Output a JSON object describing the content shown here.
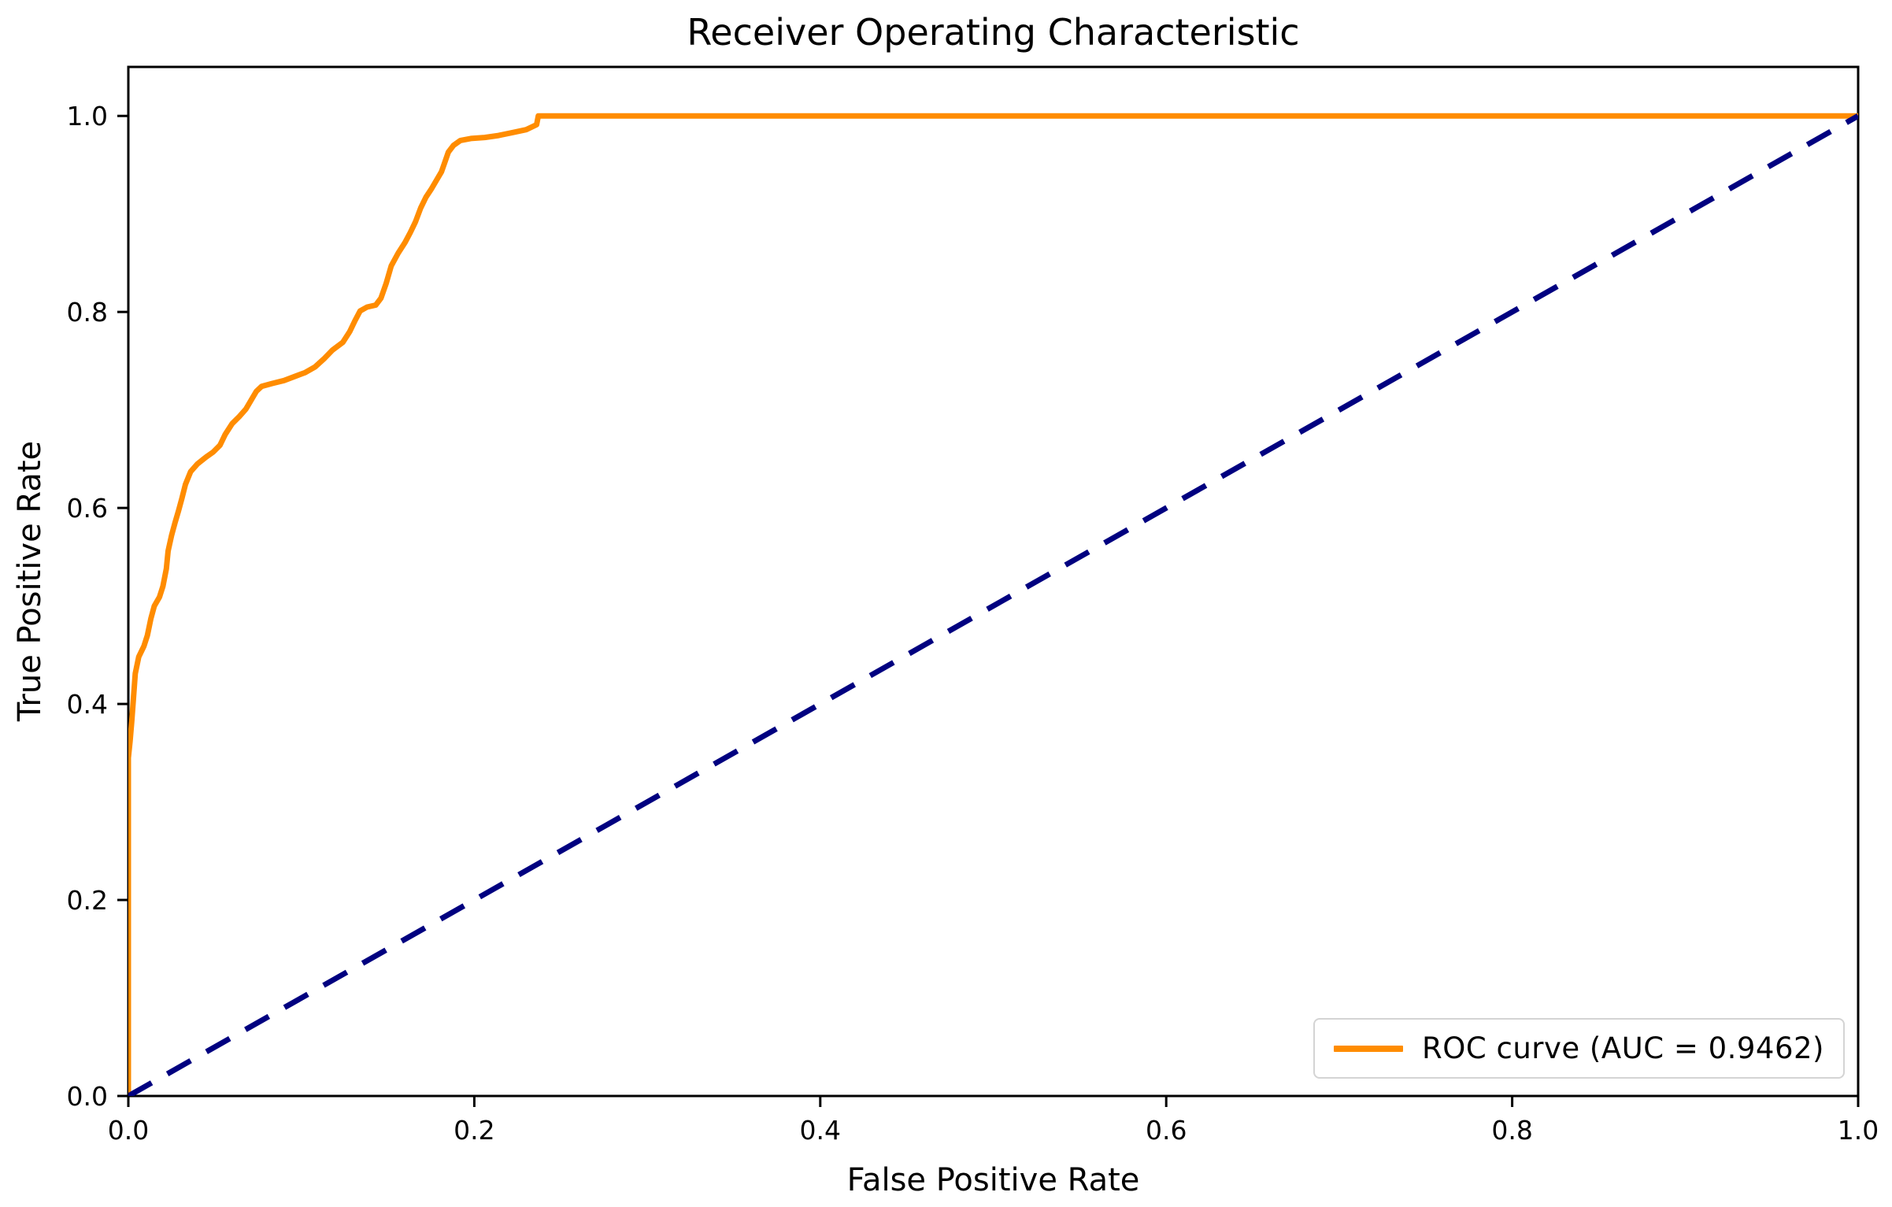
{
  "title": "Receiver Operating Characteristic",
  "xlabel": "False Positive Rate",
  "ylabel": "True Positive Rate",
  "legend": {
    "roc_label": "ROC curve (AUC = 0.9462)"
  },
  "colors": {
    "roc": "#ff8c00",
    "chance": "#000080",
    "axis": "#000000",
    "legend_border": "#d4d4d4",
    "background": "#ffffff"
  },
  "chart_data": {
    "type": "line",
    "title": "Receiver Operating Characteristic",
    "xlabel": "False Positive Rate",
    "ylabel": "True Positive Rate",
    "xlim": [
      0.0,
      1.0
    ],
    "ylim": [
      0.0,
      1.05
    ],
    "xticks": [
      "0.0",
      "0.2",
      "0.4",
      "0.6",
      "0.8",
      "1.0"
    ],
    "yticks": [
      "0.0",
      "0.2",
      "0.4",
      "0.6",
      "0.8",
      "1.0"
    ],
    "grid": false,
    "legend_position": "lower right",
    "auc": 0.9462,
    "series": [
      {
        "name": "ROC curve (AUC = 0.9462)",
        "color": "#ff8c00",
        "style": "solid",
        "points": [
          [
            0.0,
            0.0
          ],
          [
            0.0,
            0.345
          ],
          [
            0.001,
            0.362
          ],
          [
            0.002,
            0.383
          ],
          [
            0.003,
            0.407
          ],
          [
            0.004,
            0.431
          ],
          [
            0.006,
            0.448
          ],
          [
            0.009,
            0.459
          ],
          [
            0.011,
            0.47
          ],
          [
            0.013,
            0.487
          ],
          [
            0.015,
            0.5
          ],
          [
            0.018,
            0.509
          ],
          [
            0.02,
            0.52
          ],
          [
            0.022,
            0.538
          ],
          [
            0.023,
            0.556
          ],
          [
            0.025,
            0.572
          ],
          [
            0.027,
            0.585
          ],
          [
            0.029,
            0.597
          ],
          [
            0.031,
            0.61
          ],
          [
            0.033,
            0.624
          ],
          [
            0.036,
            0.637
          ],
          [
            0.04,
            0.645
          ],
          [
            0.045,
            0.652
          ],
          [
            0.049,
            0.657
          ],
          [
            0.053,
            0.664
          ],
          [
            0.056,
            0.675
          ],
          [
            0.06,
            0.686
          ],
          [
            0.064,
            0.693
          ],
          [
            0.068,
            0.701
          ],
          [
            0.071,
            0.71
          ],
          [
            0.074,
            0.719
          ],
          [
            0.077,
            0.724
          ],
          [
            0.083,
            0.727
          ],
          [
            0.09,
            0.73
          ],
          [
            0.096,
            0.734
          ],
          [
            0.102,
            0.738
          ],
          [
            0.108,
            0.744
          ],
          [
            0.113,
            0.752
          ],
          [
            0.118,
            0.761
          ],
          [
            0.124,
            0.769
          ],
          [
            0.128,
            0.78
          ],
          [
            0.131,
            0.791
          ],
          [
            0.134,
            0.801
          ],
          [
            0.138,
            0.805
          ],
          [
            0.143,
            0.807
          ],
          [
            0.146,
            0.814
          ],
          [
            0.149,
            0.829
          ],
          [
            0.152,
            0.847
          ],
          [
            0.156,
            0.86
          ],
          [
            0.16,
            0.871
          ],
          [
            0.163,
            0.881
          ],
          [
            0.166,
            0.892
          ],
          [
            0.169,
            0.906
          ],
          [
            0.172,
            0.917
          ],
          [
            0.175,
            0.925
          ],
          [
            0.178,
            0.934
          ],
          [
            0.181,
            0.943
          ],
          [
            0.183,
            0.953
          ],
          [
            0.185,
            0.963
          ],
          [
            0.188,
            0.97
          ],
          [
            0.192,
            0.975
          ],
          [
            0.198,
            0.977
          ],
          [
            0.206,
            0.978
          ],
          [
            0.214,
            0.98
          ],
          [
            0.222,
            0.983
          ],
          [
            0.23,
            0.986
          ],
          [
            0.236,
            0.991
          ],
          [
            0.237,
            1.0
          ],
          [
            1.0,
            1.0
          ]
        ]
      },
      {
        "name": "chance-diagonal",
        "color": "#000080",
        "style": "dashed",
        "points": [
          [
            0.0,
            0.0
          ],
          [
            1.0,
            1.0
          ]
        ]
      }
    ]
  }
}
